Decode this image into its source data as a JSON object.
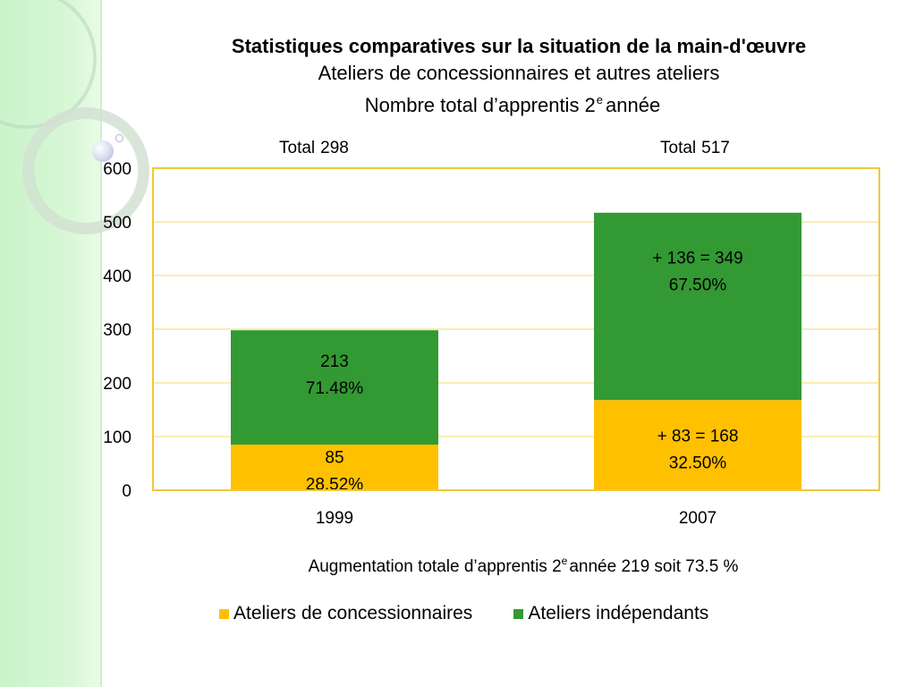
{
  "title": {
    "main": "Statistiques comparatives sur la situation de la main-d'œuvre",
    "subtitle": "Ateliers de concessionnaires et autres ateliers",
    "subtitle2_pre": "Nombre total d’apprentis 2",
    "subtitle2_sup": "e",
    "subtitle2_post": "année"
  },
  "footnote": {
    "pre": "Augmentation totale d’apprentis 2",
    "sup": "e",
    "post": "année 219 soit 73.5 %"
  },
  "chart_data": {
    "type": "bar",
    "stacked": true,
    "categories": [
      "1999",
      "2007"
    ],
    "series": [
      {
        "name": "Ateliers de concessionnaires",
        "color": "#ffc000",
        "values": [
          85,
          168
        ],
        "labels": [
          [
            "85",
            "28.52%"
          ],
          [
            "+ 83 = 168",
            "32.50%"
          ]
        ]
      },
      {
        "name": "Ateliers indépendants",
        "color": "#339933",
        "values": [
          213,
          349
        ],
        "labels": [
          [
            "213",
            "71.48%"
          ],
          [
            "+ 136 = 349",
            "67.50%"
          ]
        ]
      }
    ],
    "totals": [
      {
        "label": "Total",
        "value": "298"
      },
      {
        "label": "Total",
        "value": "517"
      }
    ],
    "ylim": [
      0,
      600
    ],
    "yticks": [
      "0",
      "100",
      "200",
      "300",
      "400",
      "500",
      "600"
    ],
    "grid": true,
    "legend": "bottom",
    "gridline_color": "#f5d96b",
    "frame_color": "#f0c93a"
  }
}
